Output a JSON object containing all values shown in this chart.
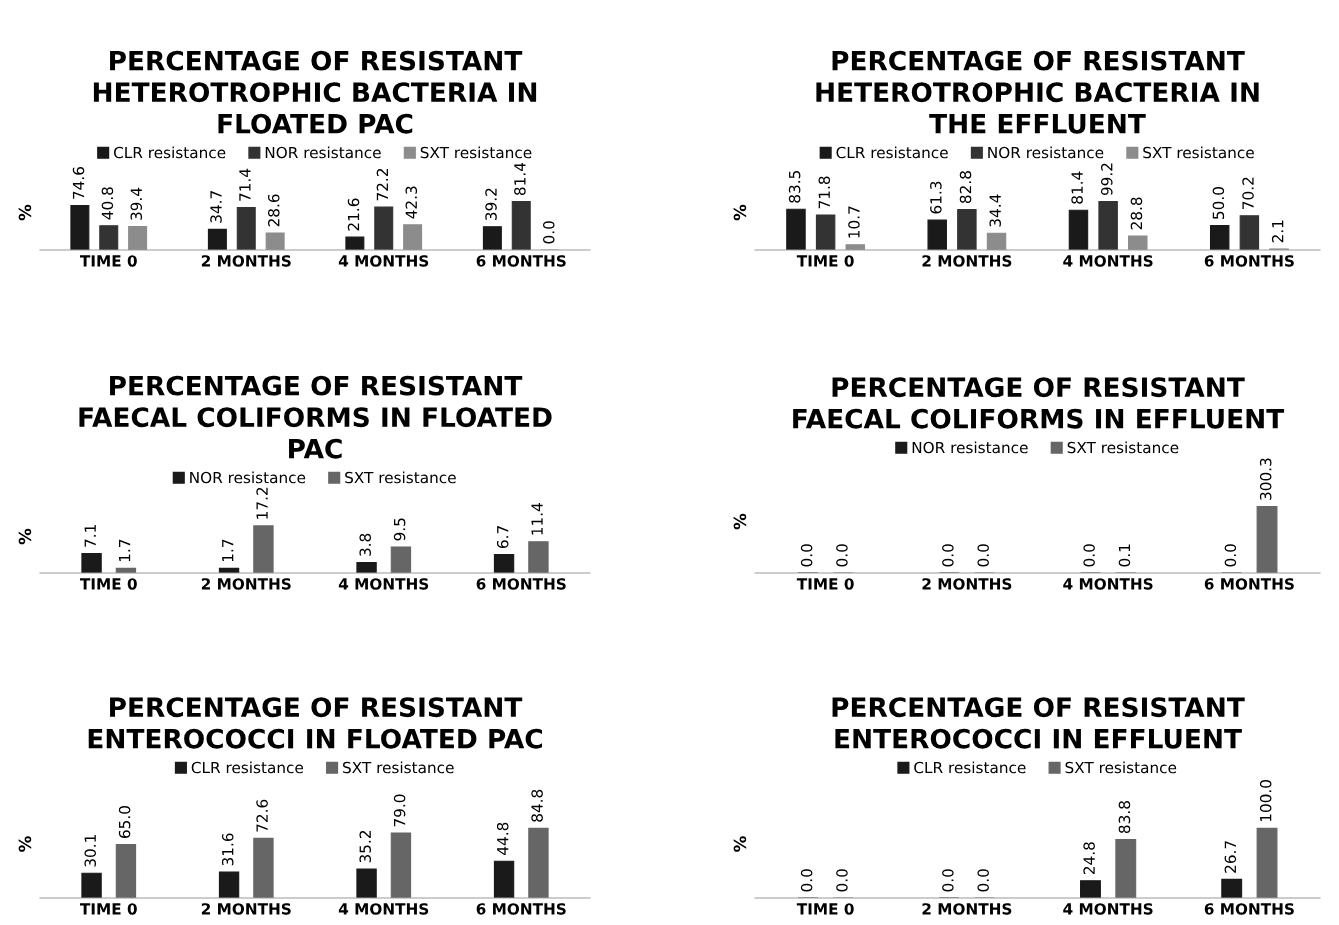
{
  "chart_data": [
    {
      "type": "bar",
      "title": "PERCENTAGE OF RESISTANT\nHETEROTROPHIC BACTERIA IN\nFLOATED PAC",
      "ylabel": "%",
      "categories": [
        "TIME 0",
        "2 MONTHS",
        "4 MONTHS",
        "6 MONTHS"
      ],
      "tick_labels": "x",
      "legend": "top",
      "series": [
        {
          "name": "CLR resistance",
          "color": "#1a1a1a",
          "values": [
            74.6,
            34.7,
            21.6,
            39.2
          ],
          "value_labels": [
            "74.6",
            "34.7",
            "21.6",
            "39.2"
          ]
        },
        {
          "name": "NOR resistance",
          "color": "#333333",
          "values": [
            40.8,
            71.4,
            72.2,
            81.4
          ],
          "value_labels": [
            "40.8",
            "71.4",
            "72.2",
            "81.4"
          ]
        },
        {
          "name": "SXT resistance",
          "color": "#8c8c8c",
          "values": [
            39.4,
            28.6,
            42.3,
            0.0
          ],
          "value_labels": [
            "39.4",
            "28.6",
            "42.3",
            "0.0"
          ]
        }
      ]
    },
    {
      "type": "bar",
      "title": "PERCENTAGE OF RESISTANT\nHETEROTROPHIC BACTERIA IN\nTHE EFFLUENT",
      "ylabel": "%",
      "categories": [
        "TIME 0",
        "2 MONTHS",
        "4 MONTHS",
        "6 MONTHS"
      ],
      "tick_labels": "x",
      "legend": "top",
      "series": [
        {
          "name": "CLR resistance",
          "color": "#1a1a1a",
          "values": [
            83.5,
            61.3,
            81.4,
            50.0
          ],
          "value_labels": [
            "83.5",
            "61.3",
            "81.4",
            "50.0"
          ]
        },
        {
          "name": "NOR resistance",
          "color": "#333333",
          "values": [
            71.8,
            82.8,
            99.2,
            70.2
          ],
          "value_labels": [
            "71.8",
            "82.8",
            "99.2",
            "70.2"
          ]
        },
        {
          "name": "SXT resistance",
          "color": "#8c8c8c",
          "values": [
            10.7,
            34.4,
            28.8,
            2.1
          ],
          "value_labels": [
            "10.7",
            "34.4",
            "28.8",
            "2.1"
          ]
        }
      ]
    },
    {
      "type": "bar",
      "title": "PERCENTAGE OF RESISTANT\nFAECAL COLIFORMS IN FLOATED\nPAC",
      "ylabel": "%",
      "categories": [
        "TIME 0",
        "2 MONTHS",
        "4 MONTHS",
        "6 MONTHS"
      ],
      "tick_labels": "x",
      "legend": "top",
      "series": [
        {
          "name": "NOR resistance",
          "color": "#1a1a1a",
          "values": [
            7.1,
            1.7,
            3.8,
            6.7
          ],
          "value_labels": [
            "7.1",
            "1.7",
            "3.8",
            "6.7"
          ]
        },
        {
          "name": "SXT resistance",
          "color": "#666666",
          "values": [
            1.7,
            17.2,
            9.5,
            11.4
          ],
          "value_labels": [
            "1.7",
            "17.2",
            "9.5",
            "11.4"
          ]
        }
      ]
    },
    {
      "type": "bar",
      "title": "PERCENTAGE OF RESISTANT\nFAECAL COLIFORMS IN EFFLUENT",
      "ylabel": "%",
      "categories": [
        "TIME 0",
        "2 MONTHS",
        "4 MONTHS",
        "6 MONTHS"
      ],
      "tick_labels": "x",
      "legend": "top",
      "series": [
        {
          "name": "NOR resistance",
          "color": "#1a1a1a",
          "values": [
            0.0,
            0.0,
            0.0,
            0.0
          ],
          "value_labels": [
            "0.0",
            "0.0",
            "0.0",
            "0.0"
          ]
        },
        {
          "name": "SXT resistance",
          "color": "#666666",
          "values": [
            0.0,
            0.0,
            0.1,
            300.3
          ],
          "value_labels": [
            "0.0",
            "0.0",
            "0.1",
            "300.3"
          ]
        }
      ]
    },
    {
      "type": "bar",
      "title": "PERCENTAGE OF RESISTANT\nENTEROCOCCI IN FLOATED PAC",
      "ylabel": "%",
      "categories": [
        "TIME 0",
        "2 MONTHS",
        "4 MONTHS",
        "6 MONTHS"
      ],
      "tick_labels": "x",
      "legend": "top",
      "series": [
        {
          "name": "CLR resistance",
          "color": "#1a1a1a",
          "values": [
            30.1,
            31.6,
            35.2,
            44.8
          ],
          "value_labels": [
            "30.1",
            "31.6",
            "35.2",
            "44.8"
          ]
        },
        {
          "name": "SXT resistance",
          "color": "#666666",
          "values": [
            65.0,
            72.6,
            79.0,
            84.8
          ],
          "value_labels": [
            "65.0",
            "72.6",
            "79.0",
            "84.8"
          ]
        }
      ]
    },
    {
      "type": "bar",
      "title": "PERCENTAGE OF RESISTANT\nENTEROCOCCI IN EFFLUENT",
      "ylabel": "%",
      "categories": [
        "TIME 0",
        "2 MONTHS",
        "4 MONTHS",
        "6 MONTHS"
      ],
      "tick_labels": "x",
      "legend": "top",
      "series": [
        {
          "name": "CLR resistance",
          "color": "#1a1a1a",
          "values": [
            0.0,
            0.0,
            24.8,
            26.7
          ],
          "value_labels": [
            "0.0",
            "0.0",
            "24.8",
            "26.7"
          ]
        },
        {
          "name": "SXT resistance",
          "color": "#666666",
          "values": [
            0.0,
            0.0,
            83.8,
            100.0
          ],
          "value_labels": [
            "0.0",
            "0.0",
            "83.8",
            "100.0"
          ]
        }
      ]
    }
  ]
}
